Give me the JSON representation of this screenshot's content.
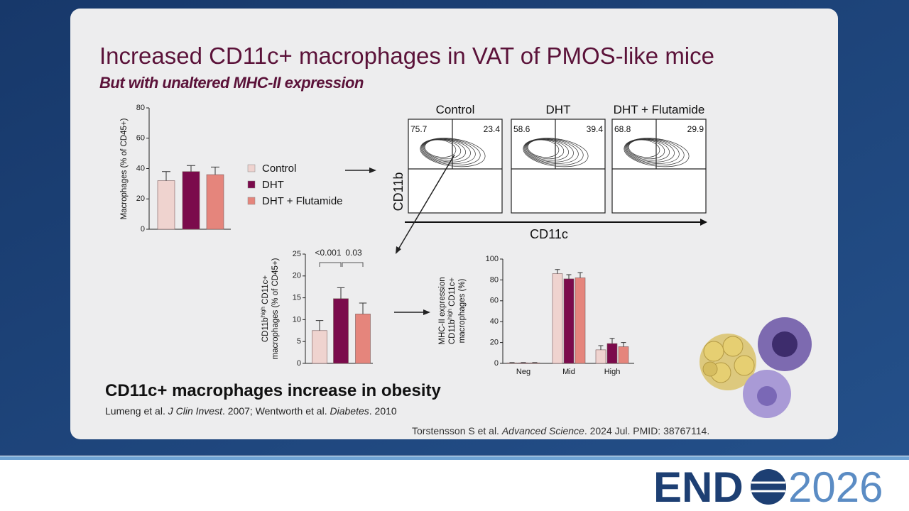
{
  "slide": {
    "title": "Increased CD11c+ macrophages in VAT of PMOS-like mice",
    "subtitle": "But with unaltered MHC-II expression",
    "finding": "CD11c+ macrophages increase in obesity",
    "reference": [
      "Lumeng et al. ",
      "J Clin Invest",
      ". 2007; Wentworth et al. ",
      "Diabetes",
      ". 2010"
    ],
    "citation": [
      "Torstensson S et al. ",
      "Advanced Science",
      ". 2024 Jul. PMID: 38767114."
    ],
    "logo": [
      "END",
      "2026"
    ]
  },
  "flow_cytometry": {
    "x_label": "CD11c",
    "y_label": "CD11b",
    "panels": [
      {
        "label": "Control",
        "left": 75.7,
        "right": 23.4
      },
      {
        "label": "DHT",
        "left": 58.6,
        "right": 39.4
      },
      {
        "label": "DHT + Flutamide",
        "left": 68.8,
        "right": 29.9
      }
    ]
  },
  "chart_data": [
    {
      "type": "bar",
      "y_label": "Macrophages (% of CD45+)",
      "series": [
        {
          "name": "Control",
          "color": "#efd3cf",
          "values": [
            32
          ],
          "errors": [
            6
          ]
        },
        {
          "name": "DHT",
          "color": "#7b0b4c",
          "values": [
            38
          ],
          "errors": [
            4
          ]
        },
        {
          "name": "DHT + Flutamide",
          "color": "#e5857c",
          "values": [
            36
          ],
          "errors": [
            5
          ]
        }
      ],
      "ylim": [
        0,
        80
      ],
      "yticks": [
        0,
        20,
        40,
        60,
        80
      ]
    },
    {
      "type": "bar",
      "y_label": [
        [
          "CD11b",
          "high",
          " CD11c+"
        ],
        [
          "macrophages (% of CD45+)"
        ]
      ],
      "annotations": [
        "<0.001",
        "0.03"
      ],
      "series": [
        {
          "color": "#efd3cf",
          "values": [
            7.5
          ],
          "errors": [
            2.3
          ]
        },
        {
          "color": "#7b0b4c",
          "values": [
            14.8
          ],
          "errors": [
            2.5
          ]
        },
        {
          "color": "#e5857c",
          "values": [
            11.3
          ],
          "errors": [
            2.5
          ]
        }
      ],
      "ylim": [
        0,
        25
      ],
      "yticks": [
        0,
        5,
        10,
        15,
        20,
        25
      ]
    },
    {
      "type": "bar",
      "y_label": [
        [
          "MHC-II expression"
        ],
        [
          "CD11b",
          "high",
          " CD11c+"
        ],
        [
          "macrophages (%)"
        ]
      ],
      "categories": [
        "Neg",
        "Mid",
        "High"
      ],
      "series": [
        {
          "color": "#efd3cf",
          "values": [
            0.5,
            86,
            13
          ],
          "errors": [
            0.3,
            4,
            4
          ]
        },
        {
          "color": "#7b0b4c",
          "values": [
            0.5,
            81,
            19
          ],
          "errors": [
            0.3,
            4,
            5
          ]
        },
        {
          "color": "#e5857c",
          "values": [
            0.5,
            82,
            16
          ],
          "errors": [
            0.3,
            5,
            4
          ]
        }
      ],
      "ylim": [
        0,
        100
      ],
      "yticks": [
        0,
        20,
        40,
        60,
        80,
        100
      ]
    }
  ]
}
